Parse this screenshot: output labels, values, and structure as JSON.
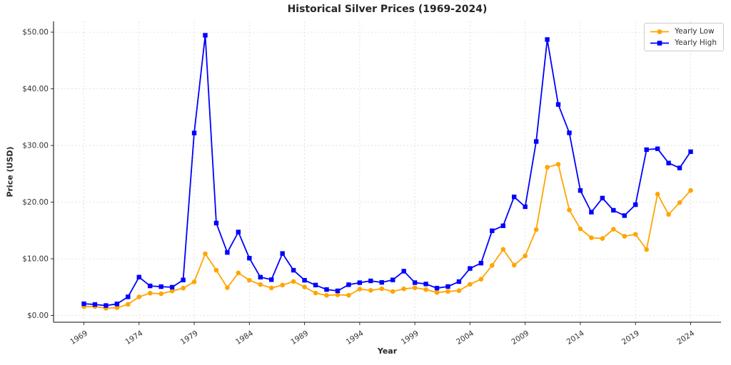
{
  "chart_data": {
    "type": "line",
    "title": "Historical Silver Prices (1969-2024)",
    "xlabel": "Year",
    "ylabel": "Price (USD)",
    "grid": true,
    "legend_position": "upper right",
    "xlim": [
      1966.25,
      2026.75
    ],
    "ylim": [
      -1.2,
      51.9
    ],
    "x_ticks": [
      1969,
      1974,
      1979,
      1984,
      1989,
      1994,
      1999,
      2004,
      2009,
      2014,
      2019,
      2024
    ],
    "y_ticks": [
      0,
      10,
      20,
      30,
      40,
      50
    ],
    "y_tick_labels": [
      "$0.00",
      "$10.00",
      "$20.00",
      "$30.00",
      "$40.00",
      "$50.00"
    ],
    "x": [
      1969,
      1970,
      1971,
      1972,
      1973,
      1974,
      1975,
      1976,
      1977,
      1978,
      1979,
      1980,
      1981,
      1982,
      1983,
      1984,
      1985,
      1986,
      1987,
      1988,
      1989,
      1990,
      1991,
      1992,
      1993,
      1994,
      1995,
      1996,
      1997,
      1998,
      1999,
      2000,
      2001,
      2002,
      2003,
      2004,
      2005,
      2006,
      2007,
      2008,
      2009,
      2010,
      2011,
      2012,
      2013,
      2014,
      2015,
      2016,
      2017,
      2018,
      2019,
      2020,
      2021,
      2022,
      2023,
      2024
    ],
    "series": [
      {
        "name": "Yearly Low",
        "color": "#FFA500",
        "marker": "circle",
        "values": [
          1.54,
          1.57,
          1.27,
          1.37,
          1.96,
          3.27,
          3.93,
          3.83,
          4.31,
          4.82,
          5.92,
          10.89,
          7.98,
          4.9,
          7.5,
          6.22,
          5.45,
          4.85,
          5.36,
          6.0,
          5.03,
          3.95,
          3.55,
          3.64,
          3.56,
          4.64,
          4.42,
          4.71,
          4.22,
          4.69,
          4.88,
          4.57,
          4.05,
          4.24,
          4.37,
          5.5,
          6.39,
          8.83,
          11.67,
          8.88,
          10.51,
          15.14,
          26.16,
          26.67,
          18.61,
          15.28,
          13.71,
          13.58,
          15.22,
          13.97,
          14.32,
          11.64,
          21.41,
          17.83,
          19.92,
          22.07
        ]
      },
      {
        "name": "Yearly High",
        "color": "#0000FF",
        "marker": "square",
        "values": [
          2.06,
          1.93,
          1.75,
          2.03,
          3.28,
          6.76,
          5.21,
          5.08,
          4.98,
          6.26,
          32.2,
          49.45,
          16.3,
          11.11,
          14.72,
          10.11,
          6.75,
          6.31,
          10.93,
          7.98,
          6.21,
          5.36,
          4.57,
          4.34,
          5.42,
          5.78,
          6.1,
          5.83,
          6.27,
          7.81,
          5.79,
          5.55,
          4.82,
          5.1,
          5.97,
          8.29,
          9.23,
          14.94,
          15.82,
          20.92,
          19.18,
          30.7,
          48.7,
          37.23,
          32.23,
          22.05,
          18.23,
          20.71,
          18.56,
          17.62,
          19.55,
          29.26,
          29.42,
          26.9,
          26.03,
          28.9
        ]
      }
    ],
    "style": {
      "grid_color": "#d9d9d9",
      "spine_color": "#3a3a3a",
      "tick_text_color": "#333333"
    }
  }
}
